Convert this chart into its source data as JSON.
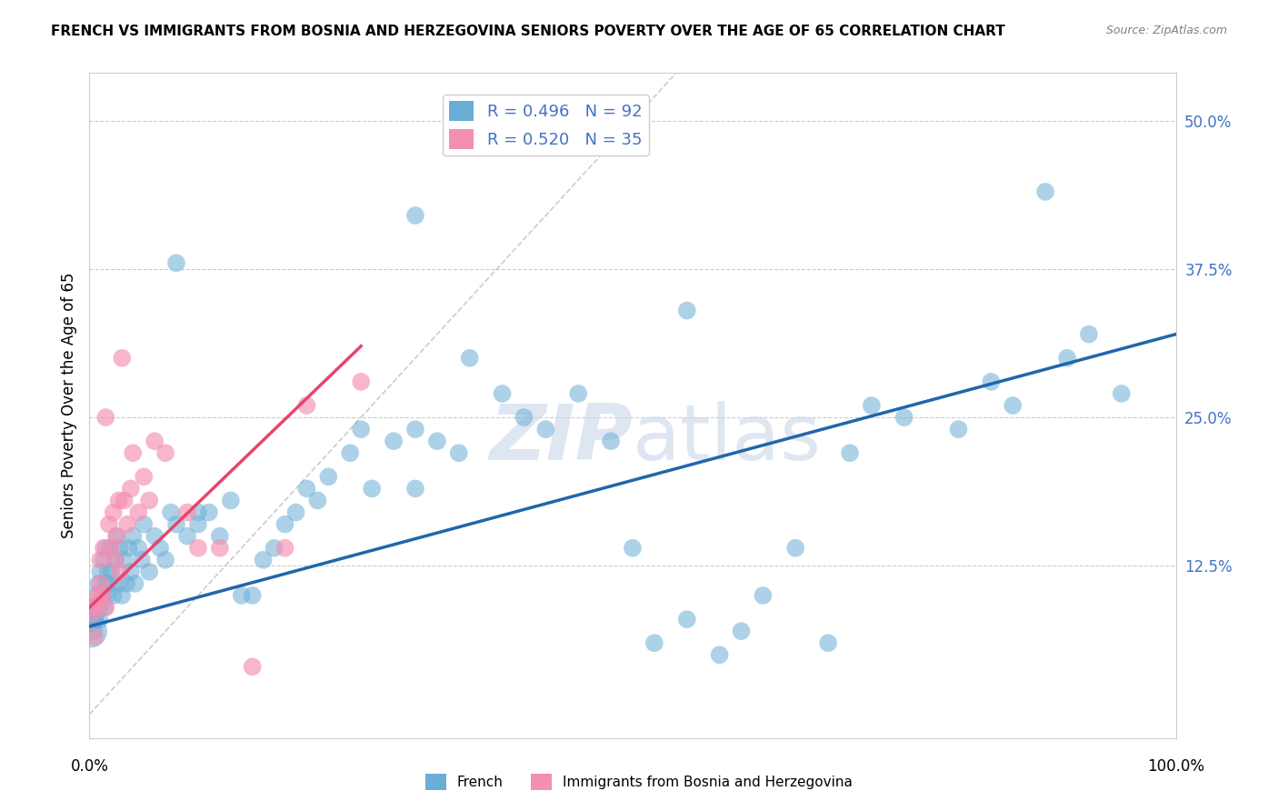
{
  "title": "FRENCH VS IMMIGRANTS FROM BOSNIA AND HERZEGOVINA SENIORS POVERTY OVER THE AGE OF 65 CORRELATION CHART",
  "source": "Source: ZipAtlas.com",
  "xlabel_bottom_left": "0.0%",
  "xlabel_bottom_right": "100.0%",
  "ylabel": "Seniors Poverty Over the Age of 65",
  "ytick_labels": [
    "",
    "12.5%",
    "25.0%",
    "37.5%",
    "50.0%"
  ],
  "ytick_values": [
    0.0,
    0.125,
    0.25,
    0.375,
    0.5
  ],
  "xlim": [
    0.0,
    1.0
  ],
  "ylim": [
    -0.02,
    0.54
  ],
  "watermark_zip": "ZIP",
  "watermark_atlas": "atlas",
  "french_color": "#6aaed6",
  "bosnia_color": "#f48fb1",
  "french_line_color": "#2166ac",
  "bosnia_line_color": "#e8446e",
  "diagonal_color": "#cccccc",
  "background_color": "#ffffff",
  "grid_color": "#cccccc",
  "french_R": 0.496,
  "french_N": 92,
  "bosnia_R": 0.52,
  "bosnia_N": 35,
  "x_french": [
    0.001,
    0.002,
    0.003,
    0.004,
    0.005,
    0.006,
    0.007,
    0.008,
    0.009,
    0.01,
    0.01,
    0.012,
    0.013,
    0.014,
    0.015,
    0.015,
    0.016,
    0.017,
    0.018,
    0.019,
    0.02,
    0.022,
    0.024,
    0.025,
    0.027,
    0.028,
    0.03,
    0.032,
    0.034,
    0.036,
    0.038,
    0.04,
    0.042,
    0.045,
    0.048,
    0.05,
    0.055,
    0.06,
    0.065,
    0.07,
    0.075,
    0.08,
    0.09,
    0.1,
    0.11,
    0.12,
    0.13,
    0.14,
    0.15,
    0.16,
    0.17,
    0.18,
    0.19,
    0.2,
    0.21,
    0.22,
    0.24,
    0.25,
    0.26,
    0.28,
    0.3,
    0.3,
    0.32,
    0.34,
    0.35,
    0.38,
    0.4,
    0.42,
    0.45,
    0.48,
    0.5,
    0.52,
    0.55,
    0.58,
    0.6,
    0.62,
    0.65,
    0.68,
    0.7,
    0.72,
    0.75,
    0.8,
    0.83,
    0.85,
    0.88,
    0.9,
    0.92,
    0.95,
    0.55,
    0.3,
    0.1,
    0.08
  ],
  "y_french": [
    0.07,
    0.08,
    0.09,
    0.07,
    0.08,
    0.1,
    0.09,
    0.11,
    0.08,
    0.09,
    0.12,
    0.1,
    0.13,
    0.09,
    0.11,
    0.14,
    0.1,
    0.12,
    0.11,
    0.14,
    0.12,
    0.1,
    0.13,
    0.15,
    0.11,
    0.14,
    0.1,
    0.13,
    0.11,
    0.14,
    0.12,
    0.15,
    0.11,
    0.14,
    0.13,
    0.16,
    0.12,
    0.15,
    0.14,
    0.13,
    0.17,
    0.16,
    0.15,
    0.16,
    0.17,
    0.15,
    0.18,
    0.1,
    0.1,
    0.13,
    0.14,
    0.16,
    0.17,
    0.19,
    0.18,
    0.2,
    0.22,
    0.24,
    0.19,
    0.23,
    0.19,
    0.24,
    0.23,
    0.22,
    0.3,
    0.27,
    0.25,
    0.24,
    0.27,
    0.23,
    0.14,
    0.06,
    0.08,
    0.05,
    0.07,
    0.1,
    0.14,
    0.06,
    0.22,
    0.26,
    0.25,
    0.24,
    0.28,
    0.26,
    0.44,
    0.3,
    0.32,
    0.27,
    0.34,
    0.42,
    0.17,
    0.38
  ],
  "s_french": [
    700,
    400,
    200,
    200,
    200,
    200,
    200,
    200,
    200,
    200,
    200,
    200,
    200,
    200,
    200,
    200,
    200,
    200,
    200,
    200,
    200,
    200,
    200,
    200,
    200,
    200,
    200,
    200,
    200,
    200,
    200,
    200,
    200,
    200,
    200,
    200,
    200,
    200,
    200,
    200,
    200,
    200,
    200,
    200,
    200,
    200,
    200,
    200,
    200,
    200,
    200,
    200,
    200,
    200,
    200,
    200,
    200,
    200,
    200,
    200,
    200,
    200,
    200,
    200,
    200,
    200,
    200,
    200,
    200,
    200,
    200,
    200,
    200,
    200,
    200,
    200,
    200,
    200,
    200,
    200,
    200,
    200,
    200,
    200,
    200,
    200,
    200,
    200,
    200,
    200,
    200,
    200
  ],
  "x_bosnia": [
    0.003,
    0.005,
    0.006,
    0.008,
    0.009,
    0.01,
    0.01,
    0.012,
    0.013,
    0.015,
    0.015,
    0.018,
    0.02,
    0.022,
    0.024,
    0.025,
    0.027,
    0.028,
    0.03,
    0.032,
    0.035,
    0.038,
    0.04,
    0.045,
    0.05,
    0.055,
    0.06,
    0.07,
    0.09,
    0.1,
    0.12,
    0.15,
    0.18,
    0.2,
    0.25
  ],
  "y_bosnia": [
    0.085,
    0.065,
    0.09,
    0.1,
    0.095,
    0.11,
    0.13,
    0.1,
    0.14,
    0.09,
    0.25,
    0.16,
    0.14,
    0.17,
    0.13,
    0.15,
    0.18,
    0.12,
    0.3,
    0.18,
    0.16,
    0.19,
    0.22,
    0.17,
    0.2,
    0.18,
    0.23,
    0.22,
    0.17,
    0.14,
    0.14,
    0.04,
    0.14,
    0.26,
    0.28
  ],
  "s_bosnia": [
    200,
    200,
    200,
    200,
    200,
    200,
    200,
    200,
    200,
    200,
    200,
    200,
    200,
    200,
    200,
    200,
    200,
    200,
    200,
    200,
    200,
    200,
    200,
    200,
    200,
    200,
    200,
    200,
    200,
    200,
    200,
    200,
    200,
    200,
    200
  ],
  "french_line_x": [
    0.0,
    1.0
  ],
  "french_line_y": [
    0.074,
    0.32
  ],
  "bosnia_line_x": [
    0.0,
    0.25
  ],
  "bosnia_line_y": [
    0.09,
    0.31
  ]
}
